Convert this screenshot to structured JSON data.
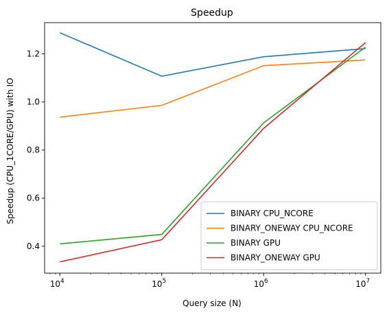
{
  "chart_data": {
    "type": "line",
    "title": "Speedup",
    "xlabel": "Query size (N)",
    "ylabel": "Speedup (CPU_1CORE/GPU) with IO",
    "x_scale": "log",
    "xlim": [
      7079,
      14125000
    ],
    "ylim": [
      0.288,
      1.33
    ],
    "x": [
      10000,
      100000,
      1000000,
      10000000
    ],
    "x_tick_labels": [
      {
        "base": "10",
        "exp": "4"
      },
      {
        "base": "10",
        "exp": "5"
      },
      {
        "base": "10",
        "exp": "6"
      },
      {
        "base": "10",
        "exp": "7"
      }
    ],
    "y_ticks": [
      0.4,
      0.6,
      0.8,
      1.0,
      1.2
    ],
    "y_tick_labels": [
      "0.4",
      "0.6",
      "0.8",
      "1.0",
      "1.2"
    ],
    "grid": false,
    "legend_position": "lower-right",
    "series": [
      {
        "name": "BINARY CPU_NCORE",
        "color": "#1f77b4",
        "values": [
          1.288,
          1.107,
          1.188,
          1.222
        ]
      },
      {
        "name": "BINARY_ONEWAY CPU_NCORE",
        "color": "#ff7f0e",
        "values": [
          0.937,
          0.986,
          1.151,
          1.175
        ]
      },
      {
        "name": "BINARY GPU",
        "color": "#2ca02c",
        "values": [
          0.41,
          0.449,
          0.913,
          1.228
        ]
      },
      {
        "name": "BINARY_ONEWAY GPU",
        "color": "#d62728",
        "values": [
          0.335,
          0.427,
          0.89,
          1.247
        ]
      }
    ]
  }
}
